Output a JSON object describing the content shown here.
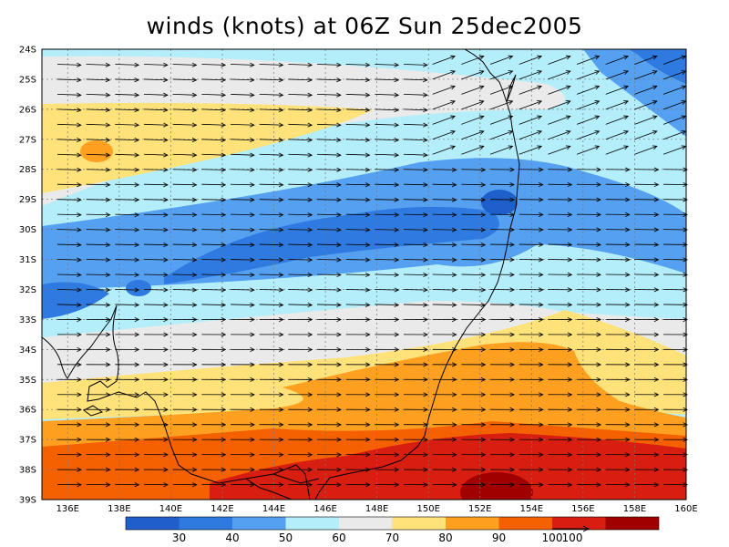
{
  "title": "winds (knots) at 06Z Sun 25dec2005",
  "chart_data": {
    "type": "heatmap",
    "title": "winds (knots) at 06Z Sun 25dec2005",
    "x_ticks": [
      "136E",
      "138E",
      "140E",
      "142E",
      "144E",
      "146E",
      "148E",
      "150E",
      "152E",
      "154E",
      "156E",
      "158E",
      "160E"
    ],
    "y_ticks": [
      "24S",
      "25S",
      "26S",
      "27S",
      "28S",
      "29S",
      "30S",
      "31S",
      "32S",
      "33S",
      "34S",
      "35S",
      "36S",
      "37S",
      "38S",
      "39S"
    ],
    "xlim": [
      "135E",
      "160E"
    ],
    "ylim": [
      "39S",
      "24S"
    ],
    "grid": true,
    "colorbar": {
      "ticks": [
        "30",
        "40",
        "50",
        "60",
        "70",
        "80",
        "90",
        "100"
      ],
      "colors": [
        "#1f5fcc",
        "#2f7ae0",
        "#55a0f0",
        "#b4eefa",
        "#eaeaea",
        "#ffe27a",
        "#ffa020",
        "#f56000",
        "#d81e10",
        "#a00000"
      ]
    },
    "reference_vector_label": "100"
  }
}
